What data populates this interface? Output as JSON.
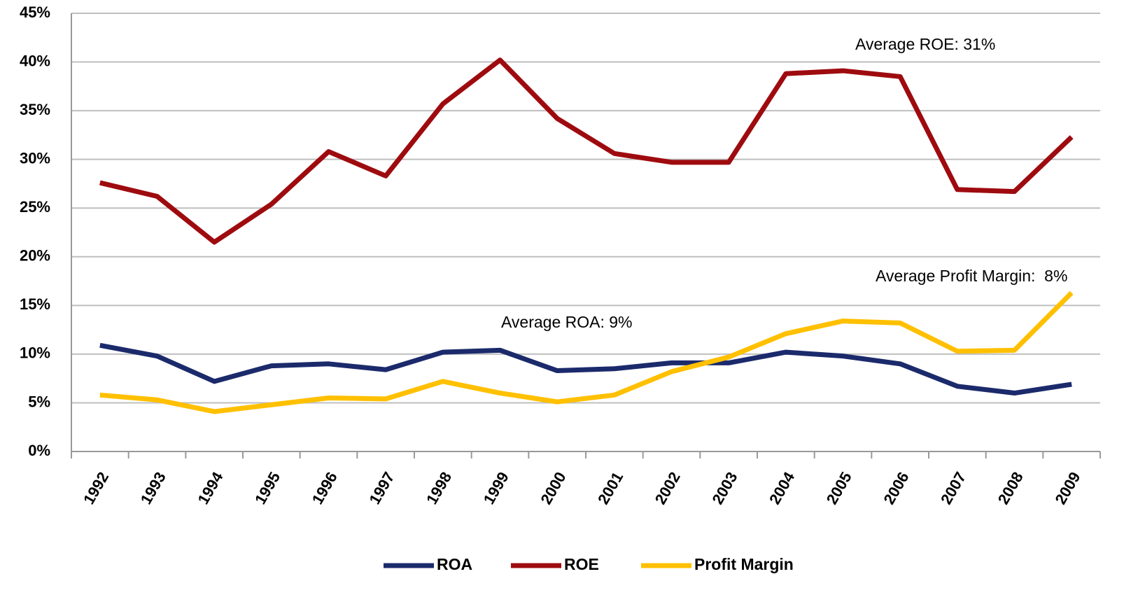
{
  "chart_data": {
    "type": "line",
    "categories": [
      "1992",
      "1993",
      "1994",
      "1995",
      "1996",
      "1997",
      "1998",
      "1999",
      "2000",
      "2001",
      "2002",
      "2003",
      "2004",
      "2005",
      "2006",
      "2007",
      "2008",
      "2009"
    ],
    "series": [
      {
        "name": "ROA",
        "color": "#1b2a6b",
        "values": [
          10.9,
          9.8,
          7.2,
          8.8,
          9.0,
          8.4,
          10.2,
          10.4,
          8.3,
          8.5,
          9.1,
          9.1,
          10.2,
          9.8,
          9.0,
          6.7,
          6.0,
          6.9
        ]
      },
      {
        "name": "ROE",
        "color": "#9e0b0f",
        "values": [
          27.6,
          26.2,
          21.5,
          25.4,
          30.8,
          28.3,
          35.7,
          40.2,
          34.2,
          30.6,
          29.7,
          29.7,
          38.8,
          39.1,
          38.5,
          26.9,
          26.7,
          32.3
        ]
      },
      {
        "name": "Profit Margin",
        "color": "#ffc000",
        "values": [
          5.8,
          5.3,
          4.1,
          4.8,
          5.5,
          5.4,
          7.2,
          6.0,
          5.1,
          5.8,
          8.2,
          9.7,
          12.1,
          13.4,
          13.2,
          10.3,
          10.4,
          16.3
        ]
      }
    ],
    "annotations": [
      "Average ROE: 31%",
      "Average Profit Margin:  8%",
      "Average ROA: 9%"
    ],
    "ylim": [
      0,
      45
    ],
    "yticks": [
      {
        "value": 0,
        "label": "0%"
      },
      {
        "value": 5,
        "label": "5%"
      },
      {
        "value": 10,
        "label": "10%"
      },
      {
        "value": 15,
        "label": "15%"
      },
      {
        "value": 20,
        "label": "20%"
      },
      {
        "value": 25,
        "label": "25%"
      },
      {
        "value": 30,
        "label": "30%"
      },
      {
        "value": 35,
        "label": "35%"
      },
      {
        "value": 40,
        "label": "40%"
      },
      {
        "value": 45,
        "label": "45%"
      }
    ],
    "grid": true,
    "legend": "bottom"
  }
}
